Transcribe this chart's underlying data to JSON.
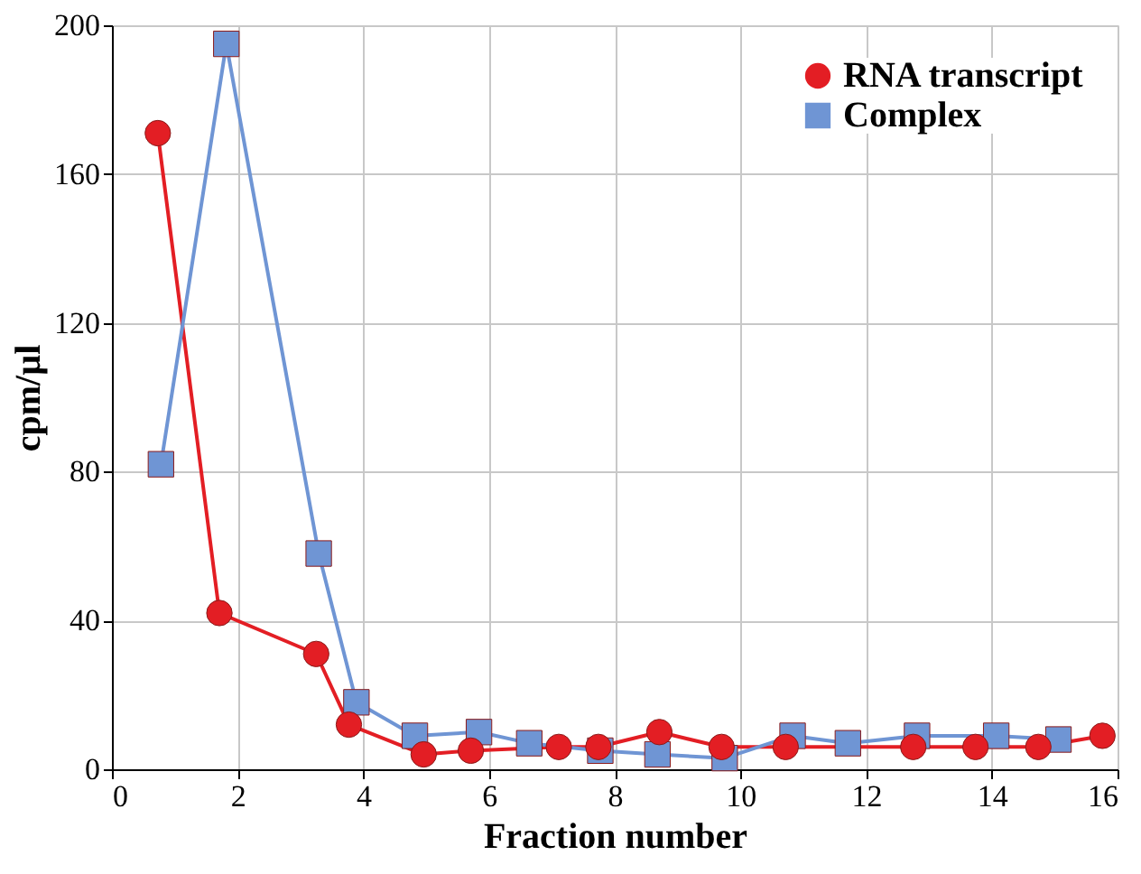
{
  "chart_data": {
    "type": "line",
    "xlabel": "Fraction number",
    "ylabel": "cpm/µl",
    "xlim": [
      0,
      16
    ],
    "ylim": [
      0,
      200
    ],
    "xticks": [
      0,
      2,
      4,
      6,
      8,
      10,
      12,
      14,
      16
    ],
    "yticks": [
      0,
      40,
      80,
      120,
      160,
      200
    ],
    "grid": true,
    "legend": "top right",
    "series": [
      {
        "name": "RNA transcript",
        "color": "#e31e24",
        "marker": "circle",
        "x": [
          0.73,
          1.71,
          3.25,
          3.77,
          4.96,
          5.71,
          7.11,
          7.74,
          8.71,
          9.7,
          10.72,
          12.75,
          13.74,
          14.74,
          15.76
        ],
        "values": [
          171,
          42,
          31,
          12,
          4,
          5,
          6,
          6,
          10,
          6,
          6,
          6,
          6,
          6,
          9
        ]
      },
      {
        "name": "Complex",
        "color": "#6f95d4",
        "marker": "square",
        "x": [
          0.78,
          1.82,
          3.29,
          3.89,
          4.82,
          5.84,
          6.64,
          7.77,
          8.68,
          9.75,
          10.83,
          11.71,
          12.81,
          14.07,
          15.06
        ],
        "values": [
          82,
          195,
          58,
          18,
          9,
          10,
          7,
          5,
          4,
          3,
          9,
          7,
          9,
          9,
          8
        ]
      }
    ]
  }
}
